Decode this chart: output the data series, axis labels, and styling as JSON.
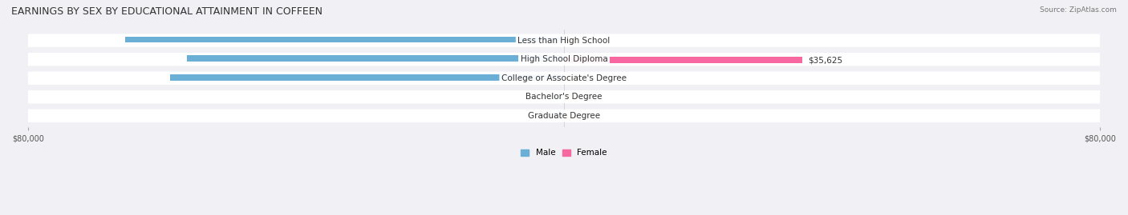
{
  "title": "EARNINGS BY SEX BY EDUCATIONAL ATTAINMENT IN COFFEEN",
  "source": "Source: ZipAtlas.com",
  "categories": [
    "Less than High School",
    "High School Diploma",
    "College or Associate's Degree",
    "Bachelor's Degree",
    "Graduate Degree"
  ],
  "male_values": [
    65446,
    56250,
    58750,
    0,
    0
  ],
  "female_values": [
    0,
    35625,
    0,
    0,
    0
  ],
  "male_color": "#6baed6",
  "female_color": "#f768a1",
  "male_zero_color": "#c6dbef",
  "female_zero_color": "#fcc5c0",
  "axis_min": -80000,
  "axis_max": 80000,
  "bg_color": "#f0f0f5",
  "row_bg_color": "#ffffff",
  "title_fontsize": 9,
  "label_fontsize": 7.5,
  "tick_fontsize": 7
}
